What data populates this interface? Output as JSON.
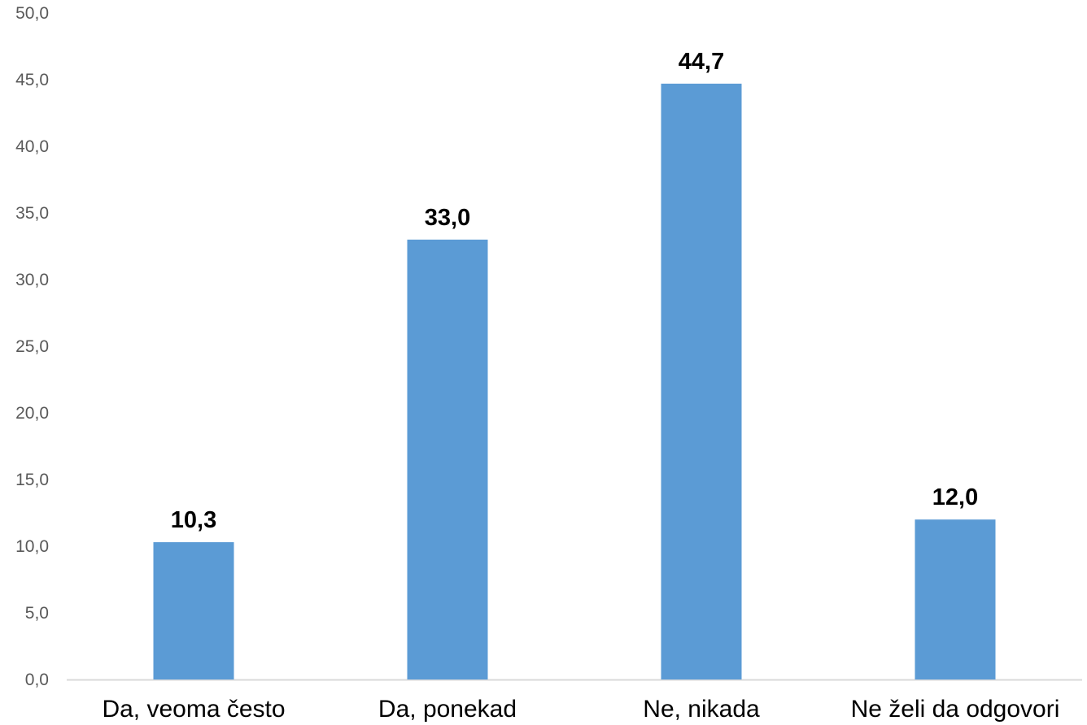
{
  "chart_data": {
    "type": "bar",
    "title": "",
    "xlabel": "",
    "ylabel": "",
    "categories": [
      "Da, veoma često",
      "Da, ponekad",
      "Ne, nikada",
      "Ne želi da odgovori"
    ],
    "values": [
      10.3,
      33.0,
      44.7,
      12.0
    ],
    "value_labels": [
      "10,3",
      "33,0",
      "44,7",
      "12,0"
    ],
    "ylim": [
      0,
      50
    ],
    "yticks": [
      "0,0",
      "5,0",
      "10,0",
      "15,0",
      "20,0",
      "25,0",
      "30,0",
      "35,0",
      "40,0",
      "45,0",
      "50,0"
    ],
    "grid": false,
    "legend": "none",
    "bar_color": "#5b9bd5",
    "axis_color": "#d9d9d9"
  }
}
